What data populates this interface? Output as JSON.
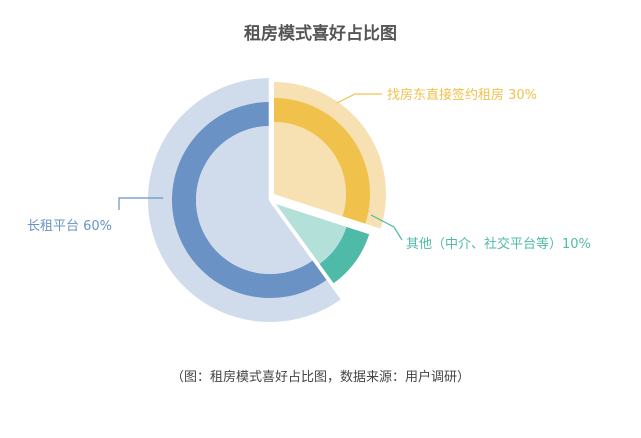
{
  "chart_data": {
    "type": "pie",
    "title": "租房模式喜好占比图",
    "caption": "（图：租房模式喜好占比图，数据来源：用户调研）",
    "slices": [
      {
        "label": "找房东直接签约租房 30%",
        "value": 30,
        "color": "#f0c24c",
        "light_color": "#f7e1b3"
      },
      {
        "label": "其他（中介、社交平台等）10%",
        "value": 10,
        "color": "#4fbaa8",
        "light_color": "#b4e0da"
      },
      {
        "label": "长租平台 60%",
        "value": 60,
        "color": "#6a92c5",
        "light_color": "#d0dceb"
      }
    ]
  }
}
